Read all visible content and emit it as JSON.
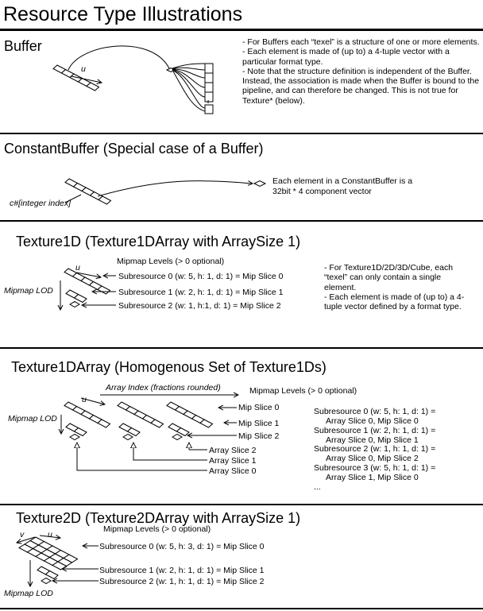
{
  "title": "Resource Type Illustrations",
  "buffer": {
    "heading": "Buffer",
    "u_label": "u",
    "notes": [
      "- For Buffers each “texel” is a structure of one or more elements.",
      "- Each element is made of (up to) a 4-tuple vector with a particular format type.",
      "- Note that the structure definition is independent of the Buffer.  Instead, the association is made when the Buffer is bound to the pipeline, and can therefore be changed.  This is not true for Texture* (below)."
    ]
  },
  "constant_buffer": {
    "heading": "ConstantBuffer (Special case of a Buffer)",
    "index_label": "c#[integer index]",
    "note_line1": "Each element in a ConstantBuffer is a",
    "note_line2": "32bit * 4 component vector"
  },
  "texture1d": {
    "heading": "Texture1D (Texture1DArray with ArraySize 1)",
    "u_label": "u",
    "mipmap_levels": "Mipmap Levels (> 0 optional)",
    "mip_lod": "Mipmap LOD",
    "subresources": [
      "Subresource 0 (w: 5, h: 1, d: 1) = Mip Slice 0",
      "Subresource 1 (w: 2, h: 1, d: 1) = Mip Slice 1",
      "Subresource 2 (w: 1, h:1, d: 1) = Mip Slice 2"
    ],
    "notes": [
      "- For Texture1D/2D/3D/Cube, each “texel” can only contain a single element.",
      "- Each element is made of (up to) a 4-tuple vector defined by a format type."
    ]
  },
  "texture1darray": {
    "heading": "Texture1DArray (Homogenous Set of Texture1Ds)",
    "array_index": "Array Index (fractions rounded)",
    "u_label": "u",
    "mipmap_levels": "Mipmap Levels (> 0 optional)",
    "mip_lod": "Mipmap LOD",
    "mip_slices": [
      "Mip Slice 0",
      "Mip Slice 1",
      "Mip Slice 2"
    ],
    "array_slices": [
      "Array Slice 2",
      "Array Slice 1",
      "Array Slice 0"
    ],
    "subresource_list": [
      "Subresource 0 (w: 5, h: 1, d: 1) =",
      "Array Slice 0, Mip Slice 0",
      "Subresource 1 (w: 2, h: 1, d: 1) =",
      "Array Slice 0, Mip Slice 1",
      "Subresource 2 (w: 1, h: 1, d: 1) =",
      "Array Slice 0, Mip Slice 2",
      "Subresource 3 (w: 5, h: 1, d: 1) =",
      "Array Slice 1, Mip Slice 0",
      "..."
    ]
  },
  "texture2d": {
    "heading": "Texture2D (Texture2DArray with ArraySize 1)",
    "v_label": "v",
    "u_label": "u",
    "mipmap_levels": "Mipmap Levels (> 0 optional)",
    "mip_lod": "Mipmap LOD",
    "subresources": [
      "Subresource 0 (w: 5, h: 3, d: 1) = Mip Slice 0",
      "Subresource 1 (w: 2, h: 1, d: 1) = Mip Slice 1",
      "Subresource 2 (w: 1, h: 1, d: 1) = Mip Slice 2"
    ]
  }
}
